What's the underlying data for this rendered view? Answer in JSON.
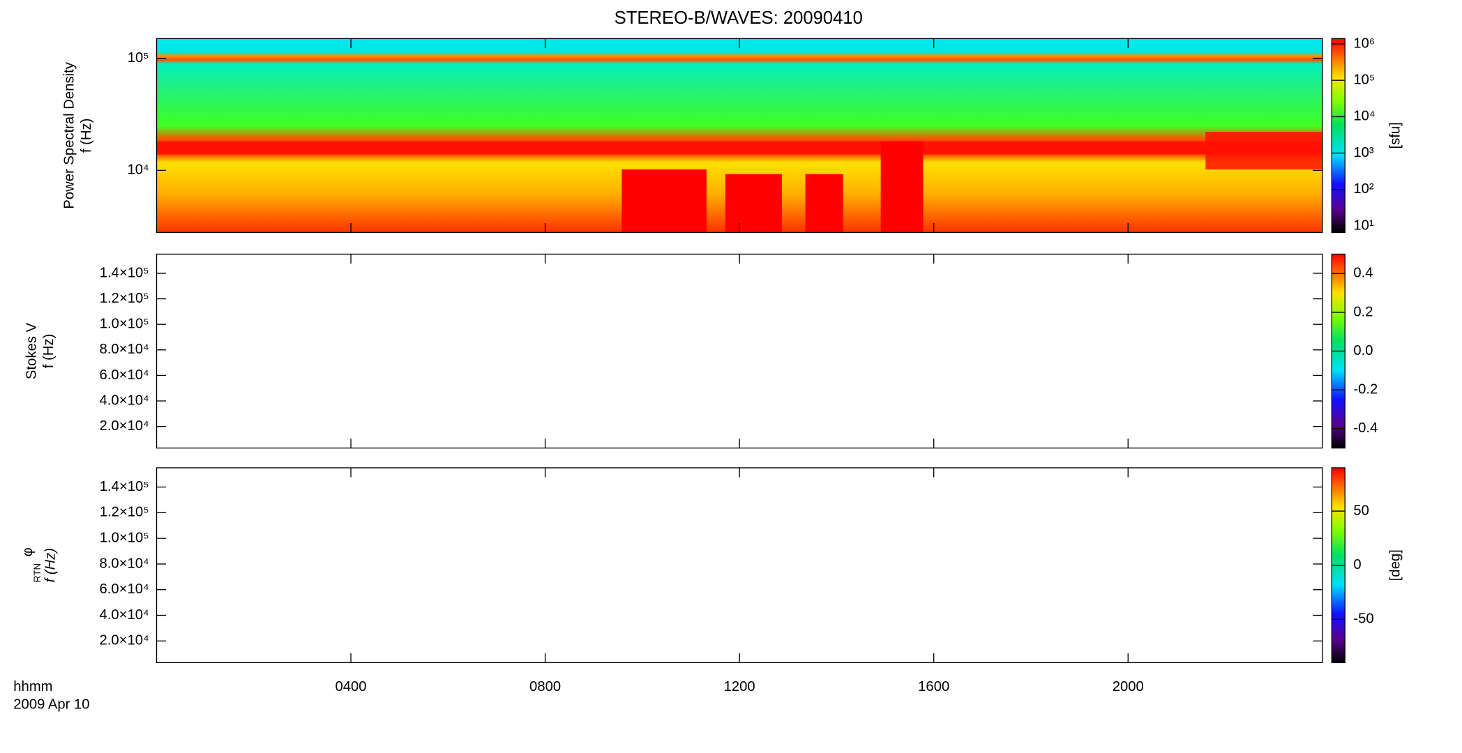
{
  "title": "STEREO-B/WAVES: 20090410",
  "x_axis": {
    "xlim": [
      0,
      1440
    ],
    "xticks": [
      {
        "value": 240,
        "label": "0400"
      },
      {
        "value": 480,
        "label": "0800"
      },
      {
        "value": 720,
        "label": "1200"
      },
      {
        "value": 960,
        "label": "1600"
      },
      {
        "value": 1200,
        "label": "2000"
      }
    ],
    "xlabel": [
      "hhmm",
      "2009 Apr 10"
    ]
  },
  "chart_data": [
    {
      "type": "heatmap",
      "ylabel": [
        "Power Spectral Density",
        "f (Hz)"
      ],
      "ylog": true,
      "ylim": [
        2790,
        150000
      ],
      "yticks": [
        {
          "value": 10000,
          "label": "10⁴"
        },
        {
          "value": 100000,
          "label": "10⁵"
        }
      ],
      "colorbar": {
        "log": true,
        "lim": [
          6.6,
          1400000
        ],
        "label": "[sfu]",
        "ticks": [
          {
            "value": 10,
            "label": "10¹"
          },
          {
            "value": 100,
            "label": "10²"
          },
          {
            "value": 1000,
            "label": "10³"
          },
          {
            "value": 10000,
            "label": "10⁴"
          },
          {
            "value": 100000,
            "label": "10⁵"
          },
          {
            "value": 1000000,
            "label": "10⁶"
          }
        ]
      }
    },
    {
      "type": "heatmap",
      "ylabel": [
        "Stokes V",
        "f (Hz)"
      ],
      "ylog": false,
      "ylim": [
        3100,
        155000
      ],
      "yticks": [
        {
          "value": 20000,
          "label": "2.0×10⁴"
        },
        {
          "value": 40000,
          "label": "4.0×10⁴"
        },
        {
          "value": 60000,
          "label": "6.0×10⁴"
        },
        {
          "value": 80000,
          "label": "8.0×10⁴"
        },
        {
          "value": 100000,
          "label": "1.0×10⁵"
        },
        {
          "value": 120000,
          "label": "1.2×10⁵"
        },
        {
          "value": 140000,
          "label": "1.4×10⁵"
        }
      ],
      "colorbar": {
        "log": false,
        "lim": [
          -0.5,
          0.5
        ],
        "ticks": [
          {
            "value": -0.4,
            "label": "-0.4"
          },
          {
            "value": -0.2,
            "label": "-0.2"
          },
          {
            "value": 0,
            "label": "0.0"
          },
          0.2,
          0.4
        ]
      }
    },
    {
      "type": "heatmap",
      "ylabel": [
        "φ",
        "RTN",
        "f (Hz)"
      ],
      "ylog": false,
      "ylim": [
        3100,
        155000
      ],
      "yticks": [
        {
          "value": 20000,
          "label": "2.0×10⁴"
        },
        {
          "value": 40000,
          "label": "4.0×10⁴"
        },
        {
          "value": 60000,
          "label": "6.0×10⁴"
        },
        {
          "value": 80000,
          "label": "8.0×10⁴"
        },
        {
          "value": 100000,
          "label": "1.0×10⁵"
        },
        {
          "value": 120000,
          "label": "1.2×10⁵"
        },
        {
          "value": 140000,
          "label": "1.4×10⁵"
        }
      ],
      "colorbar": {
        "log": false,
        "lim": [
          -90,
          90
        ],
        "label": "[deg]",
        "ticks": [
          -50,
          0,
          50
        ]
      }
    }
  ]
}
